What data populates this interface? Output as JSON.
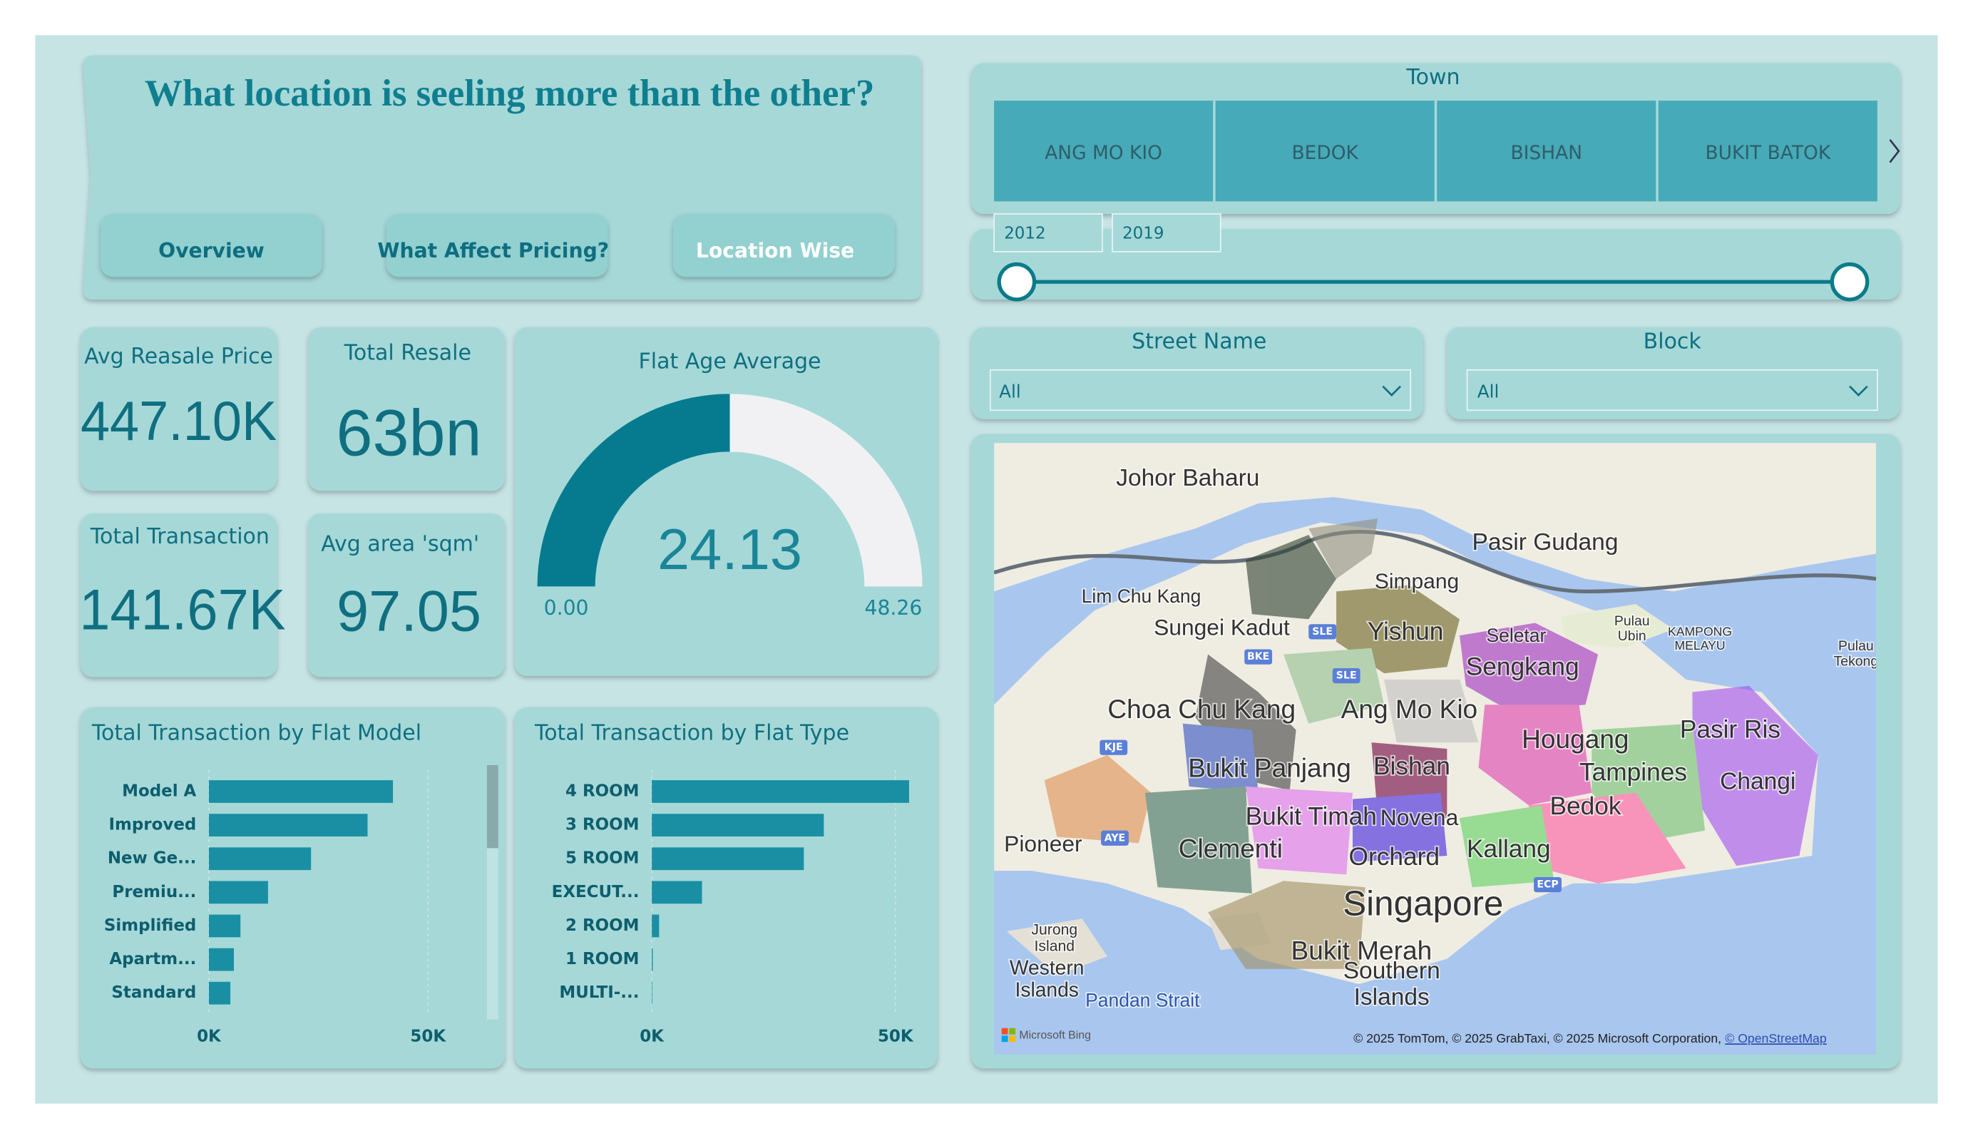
{
  "header": {
    "title": "What location is seeling more than the other?",
    "nav": [
      "Overview",
      "What Affect Pricing?",
      "Location Wise"
    ]
  },
  "filters": {
    "town": {
      "label": "Town",
      "options": [
        "ANG MO KIO",
        "BEDOK",
        "BISHAN",
        "BUKIT BATOK"
      ]
    },
    "years": [
      "2012",
      "2019"
    ],
    "street": {
      "label": "Street Name",
      "value": "All"
    },
    "block": {
      "label": "Block",
      "value": "All"
    }
  },
  "kpis": [
    {
      "label": "Avg Reasale Price",
      "value": "447.10K"
    },
    {
      "label": "Total Resale",
      "value": "63bn"
    },
    {
      "label": "Total Transaction",
      "value": "141.67K"
    },
    {
      "label": "Avg area 'sqm'",
      "value": "97.05"
    }
  ],
  "chart_data": [
    {
      "type": "gauge",
      "title": "Flat Age Average",
      "value": 24.13,
      "color": "#067b8f",
      "ylim": [
        0,
        48.26
      ],
      "yticks": [
        {
          "value": 0,
          "label": "0.00"
        },
        48.26
      ]
    },
    {
      "type": "bar",
      "title": "Total Transaction by Flat Model",
      "categories": [
        "Model A",
        "Improved",
        "New Ge...",
        "Premiu...",
        "Simplified",
        "Apartm...",
        "Standard"
      ],
      "values": [
        42000,
        36200,
        23300,
        13500,
        7200,
        5700,
        4900
      ],
      "color": "#1a8fa3",
      "xlim": [
        0,
        60000
      ],
      "xticks": [
        {
          "value": 0,
          "label": "0K"
        },
        {
          "value": 50000,
          "label": "50K"
        }
      ],
      "grid": true
    },
    {
      "type": "bar",
      "title": "Total Transaction by Flat Type",
      "categories": [
        "4 ROOM",
        "3 ROOM",
        "5 ROOM",
        "EXECUT...",
        "2 ROOM",
        "1 ROOM",
        "MULTI-..."
      ],
      "values": [
        52800,
        35300,
        31200,
        10300,
        1500,
        200,
        100
      ],
      "color": "#1a8fa3",
      "xlim": [
        0,
        55000
      ],
      "xticks": [
        {
          "value": 0,
          "label": "0K"
        },
        {
          "value": 50000,
          "label": "50K"
        }
      ],
      "grid": true
    }
  ],
  "map": {
    "places": [
      {
        "lines": [
          "Johor Baharu"
        ]
      },
      {
        "lines": [
          "Pasir Gudang"
        ]
      },
      {
        "lines": [
          "Simpang"
        ]
      },
      {
        "lines": [
          "Lim Chu Kang"
        ]
      },
      {
        "lines": [
          "Sungei Kadut"
        ]
      },
      {
        "lines": [
          "Yishun"
        ]
      },
      {
        "lines": [
          "Seletar"
        ]
      },
      {
        "lines": [
          "Sengkang"
        ]
      },
      {
        "lines": [
          "Pulau",
          "Ubin"
        ]
      },
      {
        "lines": [
          "KAMPONG",
          "MELAYU"
        ]
      },
      {
        "lines": [
          "Pulau",
          "Tekong"
        ]
      },
      {
        "lines": [
          "Choa Chu Kang"
        ]
      },
      {
        "lines": [
          "Ang Mo Kio"
        ]
      },
      {
        "lines": [
          "Hougang"
        ]
      },
      {
        "lines": [
          "Pasir Ris"
        ]
      },
      {
        "lines": [
          "Tampines"
        ]
      },
      {
        "lines": [
          "Changi"
        ]
      },
      {
        "lines": [
          "Bukit Panjang"
        ]
      },
      {
        "lines": [
          "Bishan"
        ]
      },
      {
        "lines": [
          "Bedok"
        ]
      },
      {
        "lines": [
          "Bukit Timah"
        ]
      },
      {
        "lines": [
          "Novena"
        ]
      },
      {
        "lines": [
          "Pioneer"
        ]
      },
      {
        "lines": [
          "Clementi"
        ]
      },
      {
        "lines": [
          "Orchard"
        ]
      },
      {
        "lines": [
          "Kallang"
        ]
      },
      {
        "lines": [
          "Singapore"
        ]
      },
      {
        "lines": [
          "Jurong",
          "Island"
        ]
      },
      {
        "lines": [
          "Bukit Merah"
        ]
      },
      {
        "lines": [
          "Southern",
          "Islands"
        ]
      },
      {
        "lines": [
          "Western",
          "Islands"
        ]
      },
      {
        "lines": [
          "Pandan Strait"
        ]
      }
    ],
    "shields": [
      "SLE",
      "BKE",
      "SLE",
      "KJE",
      "AYE",
      "ECP"
    ],
    "logo": "Microsoft Bing",
    "attribution": "© 2025 TomTom, © 2025 GrabTaxi, © 2025 Microsoft Corporation,",
    "osm": "© OpenStreetMap"
  }
}
